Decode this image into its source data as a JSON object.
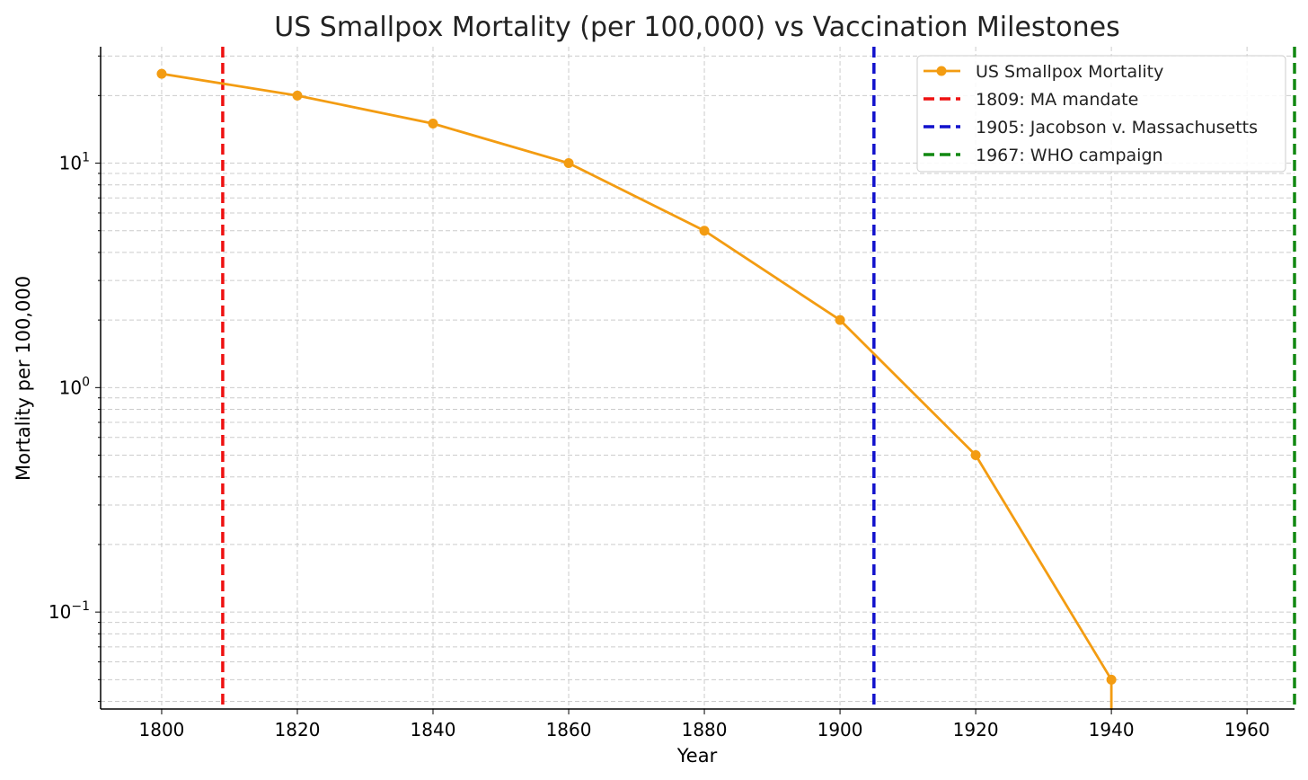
{
  "chart_data": {
    "type": "line",
    "title": "US Smallpox Mortality (per 100,000) vs Vaccination Milestones",
    "xlabel": "Year",
    "ylabel": "Mortality per 100,000",
    "xlim": [
      1791,
      1967
    ],
    "x_ticks": [
      1800,
      1820,
      1840,
      1860,
      1880,
      1900,
      1920,
      1940,
      1960
    ],
    "y_scale": "log",
    "ylim": [
      0.037,
      33
    ],
    "y_ticks": [
      {
        "value": 0.1,
        "base": "10",
        "exp": "−1"
      },
      {
        "value": 1,
        "base": "10",
        "exp": "0"
      },
      {
        "value": 10,
        "base": "10",
        "exp": "1"
      }
    ],
    "grid": true,
    "legend_position": "top-right",
    "series": [
      {
        "name": "US Smallpox Mortality",
        "color": "#f39c12",
        "x": [
          1800,
          1820,
          1840,
          1860,
          1880,
          1900,
          1920,
          1940,
          1960
        ],
        "y": [
          25,
          20,
          15,
          10,
          5,
          2,
          0.5,
          0.05,
          0
        ]
      }
    ],
    "vlines": [
      {
        "name": "1809: MA mandate",
        "x": 1809,
        "color": "#ee1111"
      },
      {
        "name": "1905: Jacobson v. Massachusetts",
        "x": 1905,
        "color": "#1111cc"
      },
      {
        "name": "1967: WHO campaign",
        "x": 1967,
        "color": "#118811"
      }
    ]
  }
}
